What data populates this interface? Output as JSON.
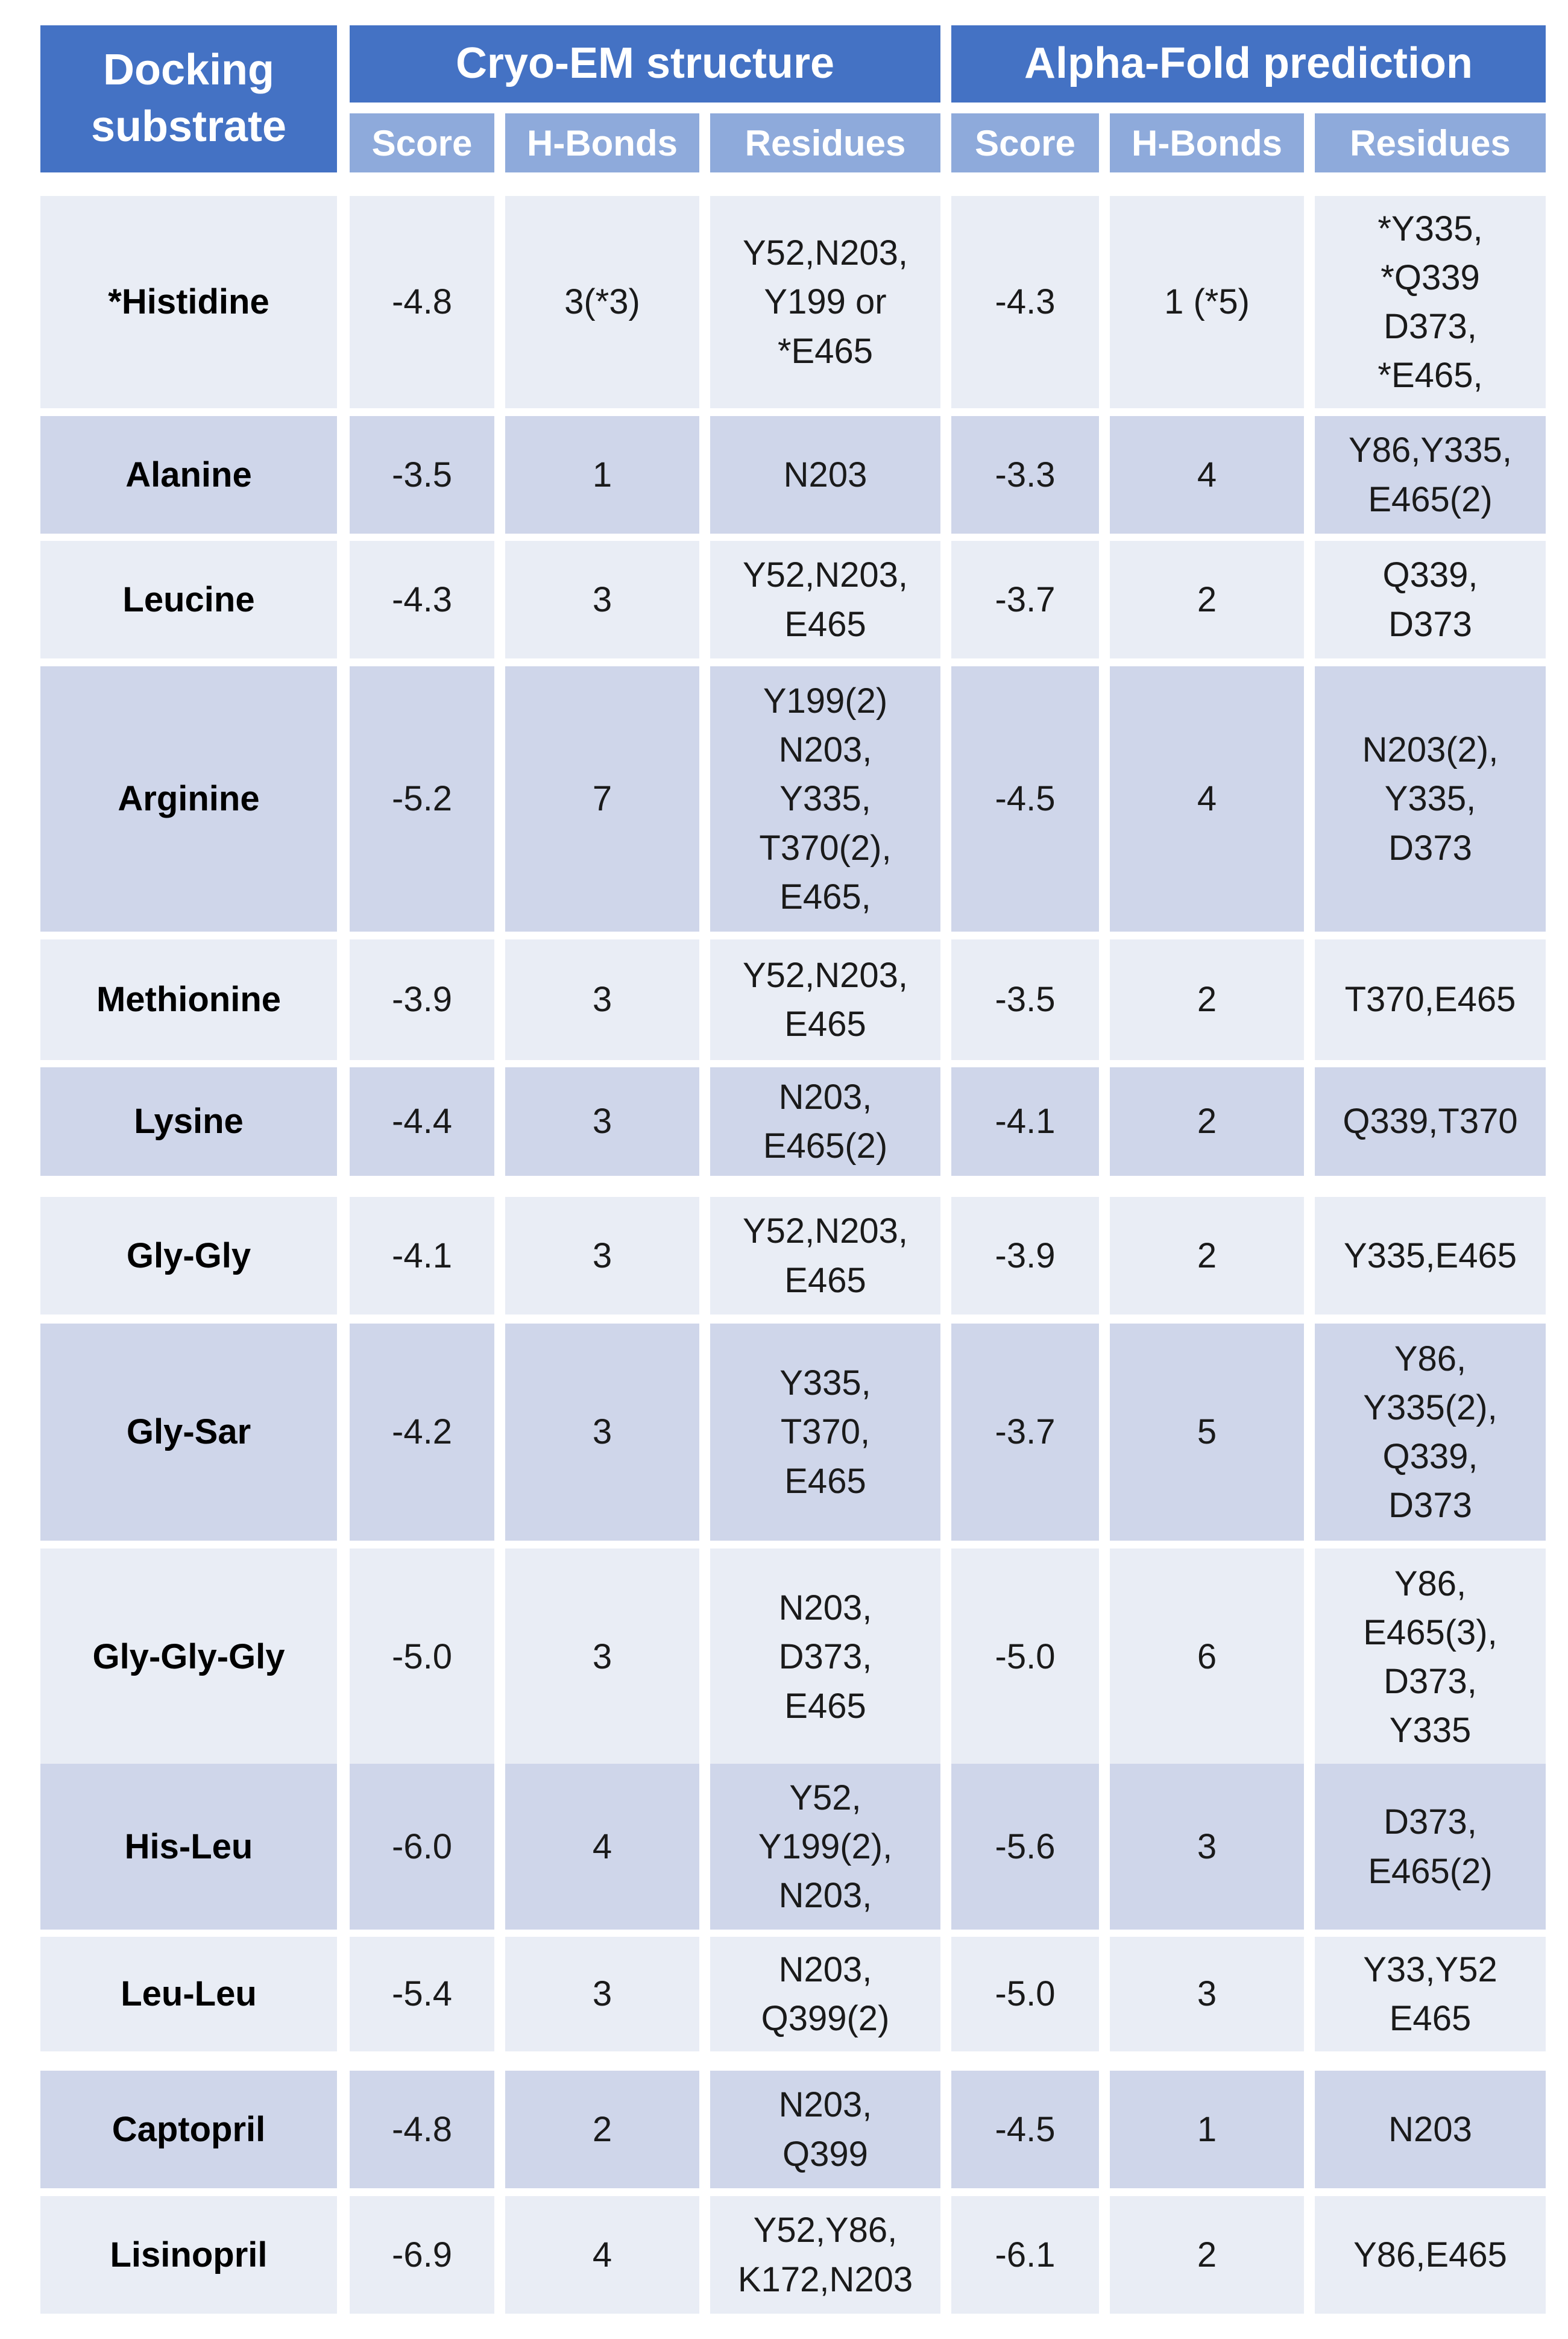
{
  "header": {
    "substrate_label": "Docking\nsubstrate",
    "group1": "Cryo-EM structure",
    "group2": "Alpha-Fold prediction",
    "sub": [
      "Score",
      "H-Bonds",
      "Residues",
      "Score",
      "H-Bonds",
      "Residues"
    ]
  },
  "rows": [
    {
      "name": "*Histidine",
      "em_score": "-4.8",
      "em_hbonds": "3(*3)",
      "em_res": "Y52,N203,\nY199 or\n*E465",
      "af_score": "-4.3",
      "af_hbonds": "1 (*5)",
      "af_res": "*Y335,\n*Q339\nD373,\n*E465,"
    },
    {
      "name": "Alanine",
      "em_score": "-3.5",
      "em_hbonds": "1",
      "em_res": "N203",
      "af_score": "-3.3",
      "af_hbonds": "4",
      "af_res": "Y86,Y335,\nE465(2)"
    },
    {
      "name": "Leucine",
      "em_score": "-4.3",
      "em_hbonds": "3",
      "em_res": "Y52,N203,\nE465",
      "af_score": "-3.7",
      "af_hbonds": "2",
      "af_res": "Q339,\nD373"
    },
    {
      "name": "Arginine",
      "em_score": "-5.2",
      "em_hbonds": "7",
      "em_res": "Y199(2)\nN203,\nY335,\nT370(2),\nE465,",
      "af_score": "-4.5",
      "af_hbonds": "4",
      "af_res": "N203(2),\nY335,\nD373"
    },
    {
      "name": "Methionine",
      "em_score": "-3.9",
      "em_hbonds": "3",
      "em_res": "Y52,N203,\nE465",
      "af_score": "-3.5",
      "af_hbonds": "2",
      "af_res": "T370,E465"
    },
    {
      "name": "Lysine",
      "em_score": "-4.4",
      "em_hbonds": "3",
      "em_res": "N203,\nE465(2)",
      "af_score": "-4.1",
      "af_hbonds": "2",
      "af_res": "Q339,T370"
    },
    {
      "name": "Gly-Gly",
      "em_score": "-4.1",
      "em_hbonds": "3",
      "em_res": "Y52,N203,\nE465",
      "af_score": "-3.9",
      "af_hbonds": "2",
      "af_res": "Y335,E465"
    },
    {
      "name": "Gly-Sar",
      "em_score": "-4.2",
      "em_hbonds": "3",
      "em_res": "Y335,\nT370,\nE465",
      "af_score": "-3.7",
      "af_hbonds": "5",
      "af_res": "Y86,\nY335(2),\nQ339,\nD373"
    },
    {
      "name": "Gly-Gly-Gly",
      "em_score": "-5.0",
      "em_hbonds": "3",
      "em_res": "N203,\nD373,\nE465",
      "af_score": "-5.0",
      "af_hbonds": "6",
      "af_res": "Y86,\nE465(3),\nD373,\nY335"
    },
    {
      "name": "His-Leu",
      "em_score": "-6.0",
      "em_hbonds": "4",
      "em_res": "Y52,\nY199(2),\nN203,",
      "af_score": "-5.6",
      "af_hbonds": "3",
      "af_res": "D373,\nE465(2)"
    },
    {
      "name": "Leu-Leu",
      "em_score": "-5.4",
      "em_hbonds": "3",
      "em_res": "N203,\nQ399(2)",
      "af_score": "-5.0",
      "af_hbonds": "3",
      "af_res": "Y33,Y52\nE465"
    },
    {
      "name": "Captopril",
      "em_score": "-4.8",
      "em_hbonds": "2",
      "em_res": "N203,\nQ399",
      "af_score": "-4.5",
      "af_hbonds": "1",
      "af_res": "N203"
    },
    {
      "name": "Lisinopril",
      "em_score": "-6.9",
      "em_hbonds": "4",
      "em_res": "Y52,Y86,\nK172,N203",
      "af_score": "-6.1",
      "af_hbonds": "2",
      "af_res": "Y86,E465"
    }
  ],
  "colors": {
    "header": "#4472c4",
    "subheader": "#8eaadb",
    "row_light": "#e9edf5",
    "row_dark": "#cfd6ea"
  }
}
